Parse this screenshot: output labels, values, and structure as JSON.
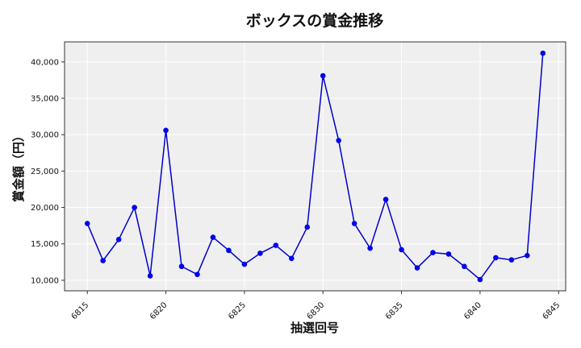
{
  "chart_data": {
    "type": "line",
    "title": "ボックスの賞金推移",
    "xlabel": "抽選回号",
    "ylabel": "賞金額（円）",
    "x": [
      6815,
      6816,
      6817,
      6818,
      6819,
      6820,
      6821,
      6822,
      6823,
      6824,
      6825,
      6826,
      6827,
      6828,
      6829,
      6830,
      6831,
      6832,
      6833,
      6834,
      6835,
      6836,
      6837,
      6838,
      6839,
      6840,
      6841,
      6842,
      6843,
      6844
    ],
    "series": [
      {
        "values": [
          17800,
          12700,
          15600,
          20000,
          10600,
          30600,
          11900,
          10800,
          15900,
          14100,
          12200,
          13700,
          14800,
          13000,
          17300,
          38100,
          29200,
          17800,
          14400,
          21100,
          14200,
          11700,
          13800,
          13600,
          11900,
          10100,
          13100,
          12800,
          13400,
          41200
        ]
      }
    ],
    "x_ticks": [
      6815,
      6820,
      6825,
      6830,
      6835,
      6840,
      6845
    ],
    "y_ticks": [
      10000,
      15000,
      20000,
      25000,
      30000,
      35000,
      40000
    ],
    "y_tick_labels": [
      "10,000",
      "15,000",
      "20,000",
      "25,000",
      "30,000",
      "35,000",
      "40,000"
    ],
    "xlim": [
      6813.55,
      6845.45
    ],
    "ylim": [
      8550,
      42750
    ],
    "grid": true,
    "colors": {
      "line": "#0000cc",
      "marker": "#0000ee",
      "plot_background": "#efefef"
    }
  }
}
